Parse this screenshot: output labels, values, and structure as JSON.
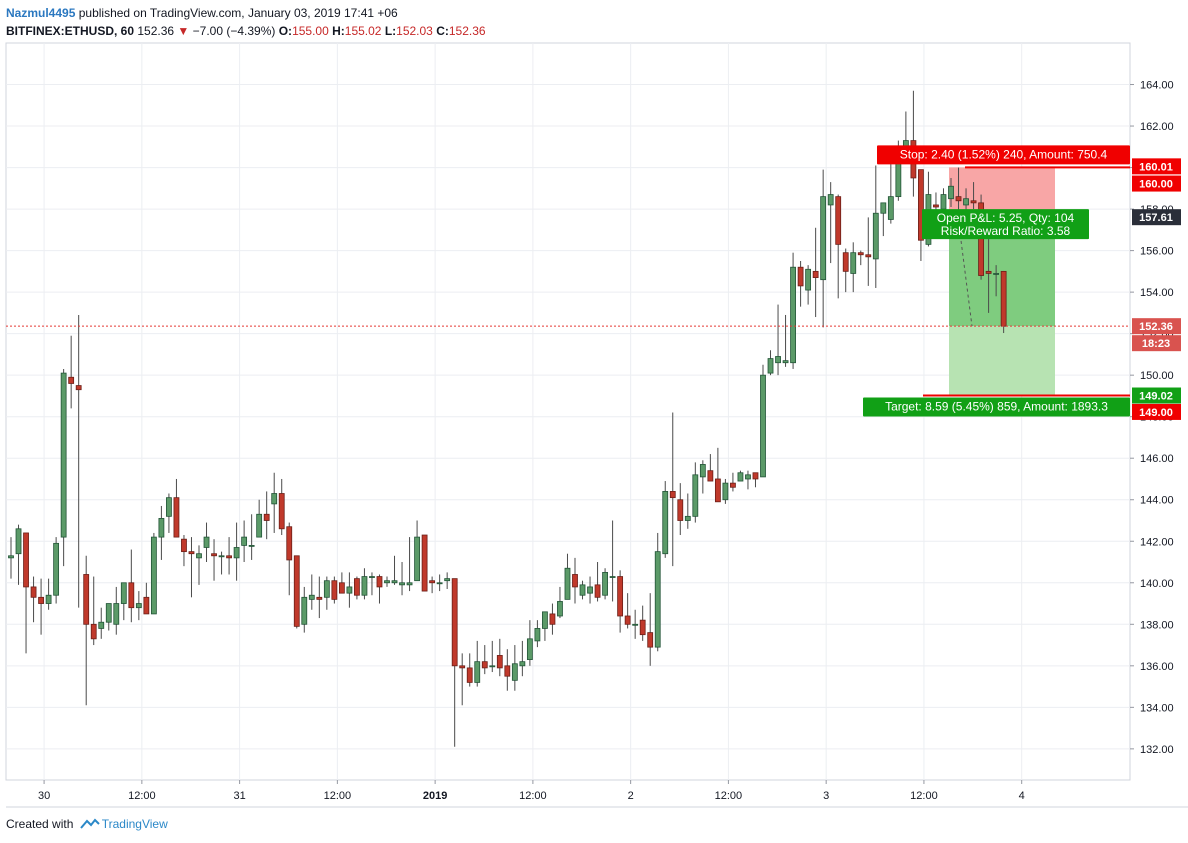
{
  "header": {
    "author": "Nazmul4495",
    "published": "published on TradingView.com, January 03, 2019 17:41 +06",
    "symbol": "BITFINEX:ETHUSD, 60",
    "last": "152.36",
    "change": "−7.00 (−4.39%)",
    "o_label": "O:",
    "o_value": "155.00",
    "h_label": "H:",
    "h_value": "155.02",
    "l_label": "L:",
    "l_value": "152.03",
    "c_label": "C:",
    "c_value": "152.36"
  },
  "footer": {
    "created_with": "Created with",
    "brand": "TradingView"
  },
  "colors": {
    "up": "#5b9a68",
    "down": "#c0392b",
    "up_border": "#225437",
    "down_border": "#6b1f18",
    "stop_zone": "#f8a6a6",
    "target_zone_dark": "#7fcc7f",
    "target_zone_light": "#b7e3b2",
    "label_red": "#f00000",
    "label_green": "#11a016",
    "last_price_line": "#e53935"
  },
  "chart_data": {
    "type": "candlestick",
    "y_axis": {
      "min": 130.5,
      "max": 166,
      "ticks": [
        "132.00",
        "134.00",
        "136.00",
        "138.00",
        "140.00",
        "142.00",
        "144.00",
        "146.00",
        "148.00",
        "150.00",
        "152.00",
        "154.00",
        "156.00",
        "158.00",
        "160.00",
        "162.00",
        "164.00"
      ]
    },
    "x_axis_labels": [
      "30",
      "12:00",
      "31",
      "12:00",
      "2019",
      "12:00",
      "2",
      "12:00",
      "3",
      "12:00",
      "4"
    ],
    "candles_ohlc": [
      [
        141.2,
        142.2,
        140.2,
        141.3
      ],
      [
        141.4,
        142.8,
        139.9,
        142.6
      ],
      [
        142.4,
        142.4,
        136.6,
        139.8
      ],
      [
        139.8,
        140.3,
        138.1,
        139.3
      ],
      [
        139.3,
        140.2,
        137.5,
        139.0
      ],
      [
        139.0,
        140.2,
        138.7,
        139.4
      ],
      [
        139.4,
        142.2,
        139.0,
        141.9
      ],
      [
        142.2,
        150.3,
        140.8,
        150.1
      ],
      [
        149.9,
        151.9,
        148.4,
        149.6
      ],
      [
        149.5,
        152.9,
        138.8,
        149.3
      ],
      [
        140.4,
        141.3,
        134.1,
        138.0
      ],
      [
        138.0,
        140.3,
        137.0,
        137.3
      ],
      [
        137.8,
        138.8,
        137.3,
        138.1
      ],
      [
        138.1,
        139.0,
        137.7,
        139.0
      ],
      [
        138.0,
        139.8,
        137.5,
        139.0
      ],
      [
        139.0,
        140.0,
        138.2,
        140.0
      ],
      [
        140.0,
        141.6,
        138.1,
        138.8
      ],
      [
        138.8,
        139.6,
        138.2,
        139.0
      ],
      [
        139.3,
        140.0,
        138.5,
        138.5
      ],
      [
        138.5,
        142.4,
        138.8,
        142.2
      ],
      [
        142.2,
        143.7,
        141.1,
        143.1
      ],
      [
        143.2,
        144.3,
        142.4,
        144.1
      ],
      [
        144.1,
        145.0,
        142.9,
        142.2
      ],
      [
        142.1,
        142.3,
        140.8,
        141.5
      ],
      [
        141.5,
        142.2,
        139.3,
        141.4
      ],
      [
        141.2,
        141.8,
        139.9,
        141.4
      ],
      [
        141.7,
        142.9,
        141.0,
        142.2
      ],
      [
        141.4,
        142.1,
        140.1,
        141.3
      ],
      [
        141.3,
        141.5,
        140.4,
        141.3
      ],
      [
        141.3,
        142.2,
        140.4,
        141.2
      ],
      [
        141.2,
        142.9,
        140.1,
        141.7
      ],
      [
        141.8,
        143.0,
        141.0,
        142.2
      ],
      [
        141.8,
        143.3,
        141.1,
        141.8
      ],
      [
        142.2,
        144.0,
        142.2,
        143.3
      ],
      [
        143.3,
        144.4,
        142.1,
        143.0
      ],
      [
        143.8,
        145.3,
        142.4,
        144.3
      ],
      [
        144.3,
        145.0,
        142.3,
        142.6
      ],
      [
        142.7,
        142.9,
        139.4,
        141.1
      ],
      [
        141.3,
        141.2,
        137.8,
        137.9
      ],
      [
        138.0,
        139.8,
        137.6,
        139.3
      ],
      [
        139.2,
        140.4,
        138.7,
        139.4
      ],
      [
        139.3,
        140.3,
        138.3,
        139.2
      ],
      [
        139.3,
        140.3,
        138.7,
        140.1
      ],
      [
        140.1,
        140.3,
        139.0,
        139.2
      ],
      [
        140.0,
        140.5,
        139.5,
        139.5
      ],
      [
        139.5,
        140.5,
        138.8,
        139.8
      ],
      [
        140.2,
        140.3,
        139.2,
        139.4
      ],
      [
        139.4,
        140.7,
        139.2,
        140.3
      ],
      [
        140.3,
        140.5,
        139.4,
        140.3
      ],
      [
        140.3,
        140.4,
        139.0,
        139.8
      ],
      [
        140.0,
        140.3,
        139.8,
        140.1
      ],
      [
        140.0,
        141.3,
        139.9,
        140.1
      ],
      [
        139.9,
        141.0,
        139.4,
        140.0
      ],
      [
        139.9,
        142.2,
        139.6,
        140.0
      ],
      [
        140.1,
        143.0,
        140.2,
        142.2
      ],
      [
        142.3,
        142.2,
        139.8,
        139.6
      ],
      [
        140.1,
        140.3,
        139.5,
        140.0
      ],
      [
        140.0,
        140.4,
        139.6,
        140.0
      ],
      [
        140.1,
        140.5,
        139.7,
        140.2
      ],
      [
        140.2,
        140.0,
        132.1,
        136.0
      ],
      [
        136.0,
        136.6,
        134.1,
        135.9
      ],
      [
        135.9,
        136.6,
        135.0,
        135.2
      ],
      [
        135.2,
        137.2,
        135.0,
        136.2
      ],
      [
        136.2,
        137.0,
        135.6,
        135.9
      ],
      [
        136.0,
        137.2,
        135.7,
        136.0
      ],
      [
        136.5,
        137.3,
        135.5,
        135.9
      ],
      [
        136.0,
        136.8,
        134.8,
        135.5
      ],
      [
        135.3,
        137.0,
        134.8,
        136.1
      ],
      [
        136.0,
        137.2,
        135.5,
        136.2
      ],
      [
        136.3,
        138.2,
        136.0,
        137.3
      ],
      [
        137.2,
        138.2,
        136.9,
        137.8
      ],
      [
        137.8,
        138.6,
        137.2,
        138.6
      ],
      [
        138.5,
        139.0,
        137.5,
        138.0
      ],
      [
        138.4,
        139.8,
        138.3,
        139.1
      ],
      [
        139.2,
        141.4,
        139.3,
        140.7
      ],
      [
        140.4,
        141.2,
        139.0,
        139.8
      ],
      [
        139.4,
        140.1,
        139.2,
        139.9
      ],
      [
        139.5,
        140.3,
        139.0,
        139.8
      ],
      [
        139.9,
        141.0,
        139.1,
        139.3
      ],
      [
        139.4,
        140.7,
        139.2,
        140.5
      ],
      [
        140.3,
        143.0,
        139.1,
        140.3
      ],
      [
        140.3,
        140.6,
        137.6,
        138.4
      ],
      [
        138.4,
        139.5,
        137.8,
        138.0
      ],
      [
        138.0,
        138.7,
        137.3,
        138.0
      ],
      [
        138.2,
        138.9,
        137.2,
        137.5
      ],
      [
        137.6,
        139.5,
        136.0,
        136.9
      ],
      [
        136.9,
        142.4,
        136.7,
        141.5
      ],
      [
        141.4,
        144.9,
        141.2,
        144.4
      ],
      [
        144.4,
        148.2,
        140.8,
        144.1
      ],
      [
        144.0,
        144.8,
        142.3,
        143.0
      ],
      [
        143.0,
        144.3,
        142.6,
        143.2
      ],
      [
        143.2,
        145.8,
        142.9,
        145.2
      ],
      [
        145.1,
        145.9,
        144.3,
        145.7
      ],
      [
        145.4,
        146.2,
        144.9,
        144.9
      ],
      [
        145.0,
        146.5,
        144.0,
        143.9
      ],
      [
        144.0,
        145.0,
        143.8,
        144.8
      ],
      [
        144.8,
        145.3,
        144.4,
        144.6
      ],
      [
        144.9,
        145.4,
        144.9,
        145.3
      ],
      [
        145.0,
        145.4,
        144.5,
        145.2
      ],
      [
        145.3,
        145.2,
        144.6,
        145.0
      ],
      [
        145.1,
        150.5,
        145.1,
        150.0
      ],
      [
        150.1,
        151.2,
        150.0,
        150.8
      ],
      [
        150.6,
        153.4,
        150.0,
        150.9
      ],
      [
        150.6,
        152.9,
        150.4,
        150.7
      ],
      [
        150.6,
        155.9,
        150.3,
        155.2
      ],
      [
        155.2,
        155.5,
        153.3,
        154.3
      ],
      [
        154.1,
        155.3,
        153.4,
        155.1
      ],
      [
        155.0,
        157.1,
        152.8,
        154.7
      ],
      [
        154.6,
        159.9,
        152.3,
        158.6
      ],
      [
        158.2,
        159.3,
        155.4,
        158.7
      ],
      [
        158.6,
        158.7,
        153.7,
        156.3
      ],
      [
        155.9,
        156.1,
        154.0,
        155.0
      ],
      [
        154.9,
        156.4,
        154.0,
        155.9
      ],
      [
        155.9,
        156.0,
        155.3,
        155.8
      ],
      [
        155.8,
        157.6,
        154.3,
        155.7
      ],
      [
        155.6,
        160.1,
        154.2,
        157.8
      ],
      [
        157.8,
        158.0,
        156.7,
        158.3
      ],
      [
        157.5,
        161.0,
        157.3,
        158.6
      ],
      [
        158.6,
        161.3,
        158.4,
        160.8
      ],
      [
        160.9,
        162.7,
        160.4,
        161.3
      ],
      [
        161.3,
        163.7,
        158.6,
        159.5
      ],
      [
        159.9,
        159.9,
        155.5,
        156.5
      ],
      [
        156.3,
        159.8,
        156.2,
        158.7
      ],
      [
        158.2,
        158.8,
        157.8,
        158.1
      ],
      [
        158.0,
        159.0,
        157.3,
        158.7
      ],
      [
        158.5,
        159.5,
        158.1,
        159.1
      ],
      [
        158.6,
        160.0,
        157.8,
        158.4
      ],
      [
        158.2,
        159.0,
        157.9,
        158.5
      ],
      [
        158.4,
        159.3,
        158.0,
        158.3
      ],
      [
        158.3,
        158.7,
        154.6,
        154.8
      ],
      [
        155.0,
        156.8,
        153.0,
        154.9
      ],
      [
        154.9,
        155.3,
        153.8,
        154.9
      ],
      [
        155.0,
        155.02,
        152.03,
        152.36
      ]
    ],
    "last_price": 152.36,
    "position": {
      "type": "long",
      "entry": 157.61,
      "stop": 160.01,
      "target": 149.02,
      "stop_axis_label": "160.00",
      "target_axis_label": "149.00",
      "stop_text": "Stop: 2.40 (1.52%) 240, Amount: 750.4",
      "target_text": "Target: 8.59 (5.45%) 859, Amount: 1893.3",
      "pnl_text": "Open P&L: 5.25, Qty: 104",
      "ratio_text": "Risk/Reward Ratio: 3.58",
      "countdown": "18:23"
    }
  }
}
